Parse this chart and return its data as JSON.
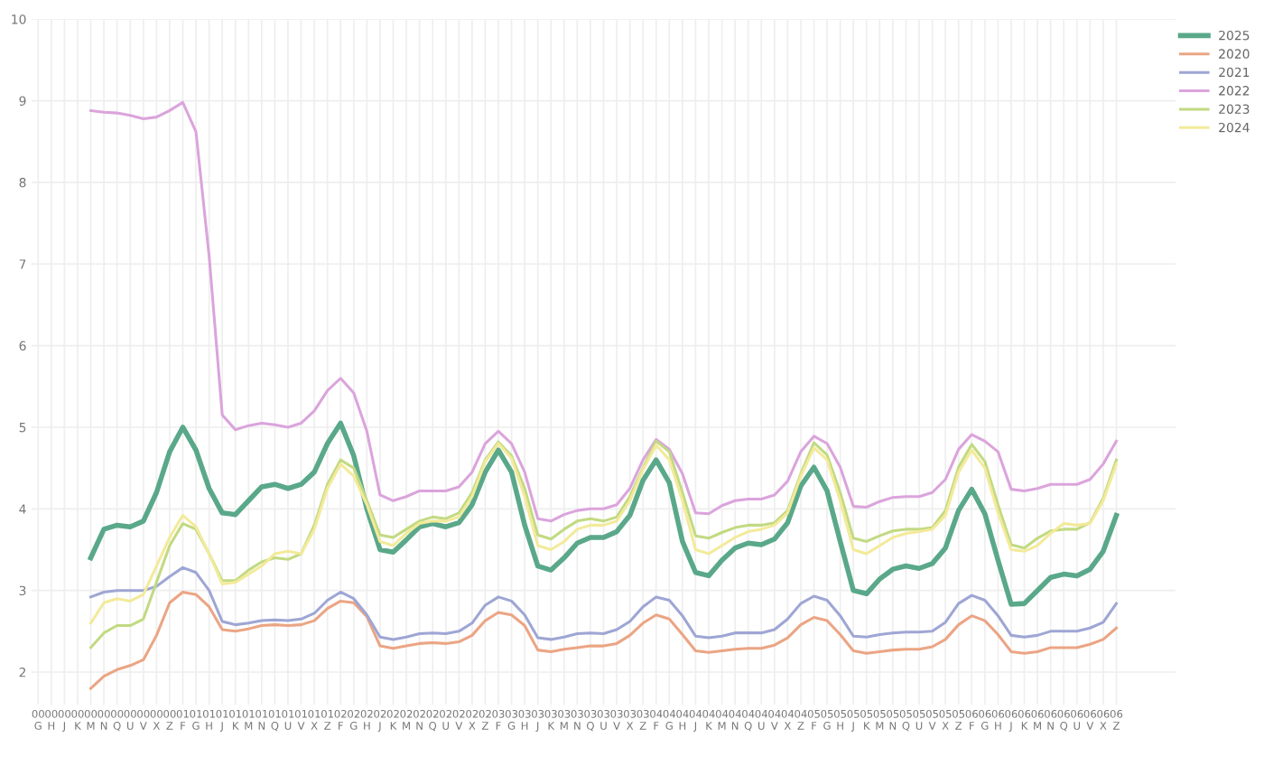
{
  "chart_data": {
    "type": "line",
    "categories": [
      "00\nG",
      "00\nH",
      "00\nJ",
      "00\nK",
      "00\nM",
      "00\nN",
      "00\nQ",
      "00\nU",
      "00\nV",
      "00\nX",
      "00\nZ",
      "01\nF",
      "01\nG",
      "01\nH",
      "01\nJ",
      "01\nK",
      "01\nM",
      "01\nN",
      "01\nQ",
      "01\nU",
      "01\nV",
      "01\nX",
      "01\nZ",
      "02\nF",
      "02\nG",
      "02\nH",
      "02\nJ",
      "02\nK",
      "02\nM",
      "02\nN",
      "02\nQ",
      "02\nU",
      "02\nV",
      "02\nX",
      "02\nZ",
      "03\nF",
      "03\nG",
      "03\nH",
      "03\nJ",
      "03\nK",
      "03\nM",
      "03\nN",
      "03\nQ",
      "03\nU",
      "03\nV",
      "03\nX",
      "03\nZ",
      "04\nF",
      "04\nG",
      "04\nH",
      "04\nJ",
      "04\nK",
      "04\nM",
      "04\nN",
      "04\nQ",
      "04\nU",
      "04\nV",
      "04\nX",
      "04\nZ",
      "05\nF",
      "05\nG",
      "05\nH",
      "05\nJ",
      "05\nK",
      "05\nM",
      "05\nN",
      "05\nQ",
      "05\nU",
      "05\nV",
      "05\nX",
      "05\nZ",
      "06\nF",
      "06\nG",
      "06\nH",
      "06\nJ",
      "06\nK",
      "06\nM",
      "06\nN",
      "06\nQ",
      "06\nU",
      "06\nV",
      "06\nX",
      "06\nZ"
    ],
    "series": [
      {
        "name": "2025",
        "color": "#5aa88a",
        "values": [
          null,
          null,
          null,
          null,
          3.4,
          3.75,
          3.8,
          3.78,
          3.85,
          4.2,
          4.7,
          5.0,
          4.72,
          4.25,
          3.95,
          3.93,
          4.1,
          4.27,
          4.3,
          4.25,
          4.3,
          4.45,
          4.8,
          5.05,
          4.65,
          4.0,
          3.5,
          3.47,
          3.62,
          3.78,
          3.82,
          3.78,
          3.83,
          4.05,
          4.45,
          4.72,
          4.45,
          3.8,
          3.3,
          3.25,
          3.4,
          3.58,
          3.65,
          3.65,
          3.72,
          3.92,
          4.35,
          4.6,
          4.32,
          3.6,
          3.22,
          3.18,
          3.37,
          3.52,
          3.58,
          3.56,
          3.63,
          3.83,
          4.28,
          4.51,
          4.22,
          3.6,
          3.0,
          2.96,
          3.14,
          3.26,
          3.3,
          3.27,
          3.33,
          3.52,
          3.98,
          4.24,
          3.94,
          3.37,
          2.83,
          2.84,
          3.0,
          3.16,
          3.2,
          3.18,
          3.26,
          3.48,
          3.92
        ]
      },
      {
        "name": "2020",
        "color": "#eba584",
        "values": [
          null,
          null,
          null,
          null,
          1.8,
          1.95,
          2.03,
          2.08,
          2.15,
          2.45,
          2.85,
          2.98,
          2.95,
          2.8,
          2.52,
          2.5,
          2.53,
          2.57,
          2.58,
          2.57,
          2.58,
          2.63,
          2.78,
          2.87,
          2.85,
          2.68,
          2.32,
          2.29,
          2.32,
          2.35,
          2.36,
          2.35,
          2.37,
          2.45,
          2.63,
          2.73,
          2.7,
          2.57,
          2.27,
          2.25,
          2.28,
          2.3,
          2.32,
          2.32,
          2.35,
          2.45,
          2.6,
          2.7,
          2.65,
          2.46,
          2.26,
          2.24,
          2.26,
          2.28,
          2.29,
          2.29,
          2.33,
          2.42,
          2.58,
          2.67,
          2.63,
          2.46,
          2.26,
          2.23,
          2.25,
          2.27,
          2.28,
          2.28,
          2.31,
          2.4,
          2.58,
          2.69,
          2.63,
          2.46,
          2.25,
          2.23,
          2.25,
          2.3,
          2.3,
          2.3,
          2.34,
          2.4,
          2.54
        ]
      },
      {
        "name": "2021",
        "color": "#9ea6d4",
        "values": [
          null,
          null,
          null,
          null,
          2.92,
          2.98,
          3.0,
          3.0,
          3.0,
          3.05,
          3.17,
          3.28,
          3.22,
          3.0,
          2.62,
          2.58,
          2.6,
          2.63,
          2.64,
          2.63,
          2.65,
          2.72,
          2.88,
          2.98,
          2.9,
          2.7,
          2.43,
          2.4,
          2.43,
          2.47,
          2.48,
          2.47,
          2.5,
          2.6,
          2.82,
          2.92,
          2.87,
          2.7,
          2.42,
          2.4,
          2.43,
          2.47,
          2.48,
          2.47,
          2.52,
          2.62,
          2.8,
          2.92,
          2.88,
          2.69,
          2.44,
          2.42,
          2.44,
          2.48,
          2.48,
          2.48,
          2.52,
          2.65,
          2.84,
          2.93,
          2.88,
          2.69,
          2.44,
          2.43,
          2.46,
          2.48,
          2.49,
          2.49,
          2.5,
          2.61,
          2.84,
          2.94,
          2.88,
          2.69,
          2.45,
          2.43,
          2.45,
          2.5,
          2.5,
          2.5,
          2.54,
          2.61,
          2.84
        ]
      },
      {
        "name": "2022",
        "color": "#dba4dc",
        "values": [
          null,
          null,
          null,
          null,
          8.88,
          8.86,
          8.85,
          8.82,
          8.78,
          8.8,
          8.88,
          8.98,
          8.62,
          7.1,
          5.15,
          4.97,
          5.02,
          5.05,
          5.03,
          5.0,
          5.05,
          5.2,
          5.45,
          5.6,
          5.42,
          4.95,
          4.17,
          4.1,
          4.15,
          4.22,
          4.22,
          4.22,
          4.27,
          4.45,
          4.8,
          4.95,
          4.8,
          4.45,
          3.88,
          3.85,
          3.93,
          3.98,
          4.0,
          4.0,
          4.05,
          4.25,
          4.6,
          4.85,
          4.73,
          4.43,
          3.95,
          3.94,
          4.04,
          4.1,
          4.12,
          4.12,
          4.17,
          4.34,
          4.7,
          4.89,
          4.8,
          4.51,
          4.03,
          4.02,
          4.09,
          4.14,
          4.15,
          4.15,
          4.2,
          4.36,
          4.73,
          4.91,
          4.83,
          4.7,
          4.24,
          4.22,
          4.25,
          4.3,
          4.3,
          4.3,
          4.36,
          4.55,
          4.83
        ]
      },
      {
        "name": "2023",
        "color": "#c2da82",
        "values": [
          null,
          null,
          null,
          null,
          2.3,
          2.48,
          2.57,
          2.57,
          2.65,
          3.1,
          3.55,
          3.82,
          3.75,
          3.45,
          3.12,
          3.12,
          3.25,
          3.35,
          3.4,
          3.38,
          3.45,
          3.8,
          4.3,
          4.6,
          4.5,
          4.1,
          3.68,
          3.65,
          3.75,
          3.85,
          3.9,
          3.88,
          3.95,
          4.2,
          4.6,
          4.82,
          4.65,
          4.25,
          3.68,
          3.63,
          3.75,
          3.85,
          3.88,
          3.85,
          3.9,
          4.15,
          4.5,
          4.83,
          4.7,
          4.2,
          3.67,
          3.64,
          3.71,
          3.77,
          3.8,
          3.8,
          3.83,
          3.98,
          4.43,
          4.81,
          4.66,
          4.2,
          3.64,
          3.6,
          3.67,
          3.73,
          3.75,
          3.75,
          3.77,
          3.98,
          4.51,
          4.79,
          4.58,
          4.05,
          3.56,
          3.52,
          3.64,
          3.73,
          3.75,
          3.75,
          3.83,
          4.13,
          4.6
        ]
      },
      {
        "name": "2024",
        "color": "#f3ea9a",
        "values": [
          null,
          null,
          null,
          null,
          2.6,
          2.85,
          2.9,
          2.87,
          2.95,
          3.3,
          3.65,
          3.92,
          3.78,
          3.45,
          3.08,
          3.1,
          3.2,
          3.3,
          3.45,
          3.48,
          3.45,
          3.75,
          4.25,
          4.55,
          4.4,
          4.05,
          3.6,
          3.55,
          3.7,
          3.82,
          3.85,
          3.85,
          3.9,
          4.15,
          4.58,
          4.8,
          4.62,
          4.15,
          3.55,
          3.5,
          3.6,
          3.75,
          3.8,
          3.8,
          3.85,
          4.1,
          4.48,
          4.78,
          4.6,
          4.1,
          3.5,
          3.45,
          3.55,
          3.65,
          3.72,
          3.75,
          3.8,
          3.95,
          4.4,
          4.75,
          4.6,
          4.1,
          3.5,
          3.45,
          3.55,
          3.65,
          3.7,
          3.72,
          3.75,
          3.92,
          4.45,
          4.72,
          4.5,
          3.95,
          3.5,
          3.48,
          3.55,
          3.7,
          3.82,
          3.8,
          3.82,
          4.1,
          4.55
        ]
      }
    ],
    "ylim": [
      1.6,
      10
    ],
    "yticks": [
      2,
      3,
      4,
      5,
      6,
      7,
      8,
      9,
      10
    ],
    "grid": true,
    "legend": "top right",
    "marker": "none",
    "line_style": "solid"
  }
}
